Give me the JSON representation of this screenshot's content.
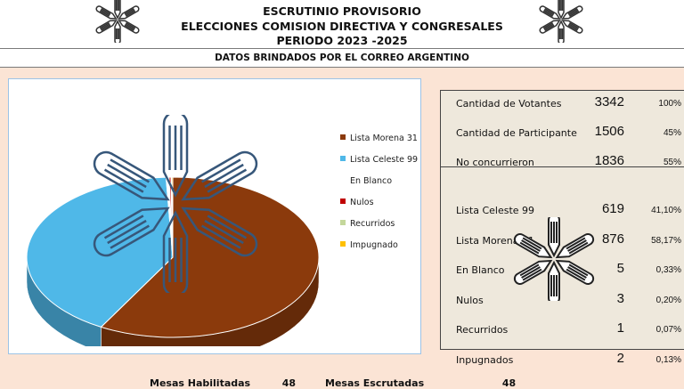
{
  "header": {
    "title_line1": "ESCRUTINIO PROVISORIO",
    "title_line2": "ELECCIONES COMISION DIRECTIVA Y CONGRESALES",
    "title_line3": "PERIODO 2023 -2025"
  },
  "subheader": "DATOS BRINDADOS POR EL CORREO ARGENTINO",
  "colors": {
    "morena": "#8b3a0c",
    "celeste": "#4fb8e8",
    "blanco": "#ffffff",
    "nulos": "#c00000",
    "recurridos": "#c4d79b",
    "impugnado": "#ffc000"
  },
  "chart_data": {
    "type": "pie",
    "categories": [
      "Lista Morena 31",
      "Lista Celeste 99",
      "En Blanco",
      "Nulos",
      "Recurridos",
      "Impugnado"
    ],
    "values": [
      876,
      619,
      5,
      3,
      1,
      2
    ],
    "legend_position": "right"
  },
  "legend": [
    {
      "label": "Lista Morena 31",
      "color": "#8b3a0c"
    },
    {
      "label": "Lista Celeste 99",
      "color": "#4fb8e8"
    },
    {
      "label": "En Blanco",
      "color": "#ffffff"
    },
    {
      "label": "Nulos",
      "color": "#c00000"
    },
    {
      "label": "Recurridos",
      "color": "#c4d79b"
    },
    {
      "label": "Impugnado",
      "color": "#ffc000"
    }
  ],
  "stats": {
    "top": [
      {
        "label": "Cantidad de Votantes",
        "value": "3342",
        "pct": "100%"
      },
      {
        "label": "Cantidad de Participante",
        "value": "1506",
        "pct": "45%"
      },
      {
        "label": "No concurrieron",
        "value": "1836",
        "pct": "55%"
      }
    ],
    "results": [
      {
        "label": "Lista Celeste 99",
        "value": "619",
        "pct": "41,10%"
      },
      {
        "label": "Lista Morena 31",
        "value": "876",
        "pct": "58,17%"
      },
      {
        "label": "En Blanco",
        "value": "5",
        "pct": "0,33%"
      },
      {
        "label": "Nulos",
        "value": "3",
        "pct": "0,20%"
      },
      {
        "label": "Recurridos",
        "value": "1",
        "pct": "0,07%"
      },
      {
        "label": "Inpugnados",
        "value": "2",
        "pct": "0,13%"
      }
    ]
  },
  "footer": {
    "left_text": "Mesas Habilitadas",
    "left_value": "48",
    "right_text": "Mesas Escrutadas",
    "right_value": "48"
  },
  "icons": [
    "pencil-star-logo"
  ]
}
